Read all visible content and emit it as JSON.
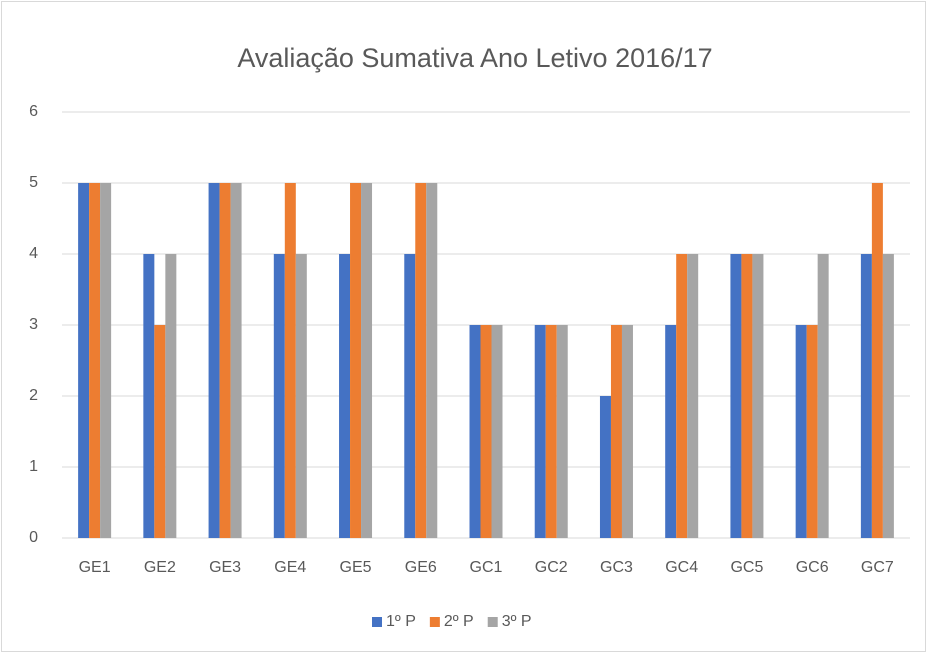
{
  "chart_data": {
    "type": "bar",
    "title": "Avaliação Sumativa Ano Letivo 2016/17",
    "categories": [
      "GE1",
      "GE2",
      "GE3",
      "GE4",
      "GE5",
      "GE6",
      "GC1",
      "GC2",
      "GC3",
      "GC4",
      "GC5",
      "GC6",
      "GC7"
    ],
    "series": [
      {
        "name": "1º P",
        "color": "#4472c4",
        "values": [
          5,
          4,
          5,
          4,
          4,
          4,
          3,
          3,
          2,
          3,
          4,
          3,
          4
        ]
      },
      {
        "name": "2º P",
        "color": "#ed7d31",
        "values": [
          5,
          3,
          5,
          5,
          5,
          5,
          3,
          3,
          3,
          4,
          4,
          3,
          5
        ]
      },
      {
        "name": "3º P",
        "color": "#a5a5a5",
        "values": [
          5,
          4,
          5,
          4,
          5,
          5,
          3,
          3,
          3,
          4,
          4,
          4,
          4
        ]
      }
    ],
    "ylim": [
      0,
      6
    ],
    "yticks": [
      0,
      1,
      2,
      3,
      4,
      5,
      6
    ],
    "grid": true,
    "legend": "bottom"
  }
}
